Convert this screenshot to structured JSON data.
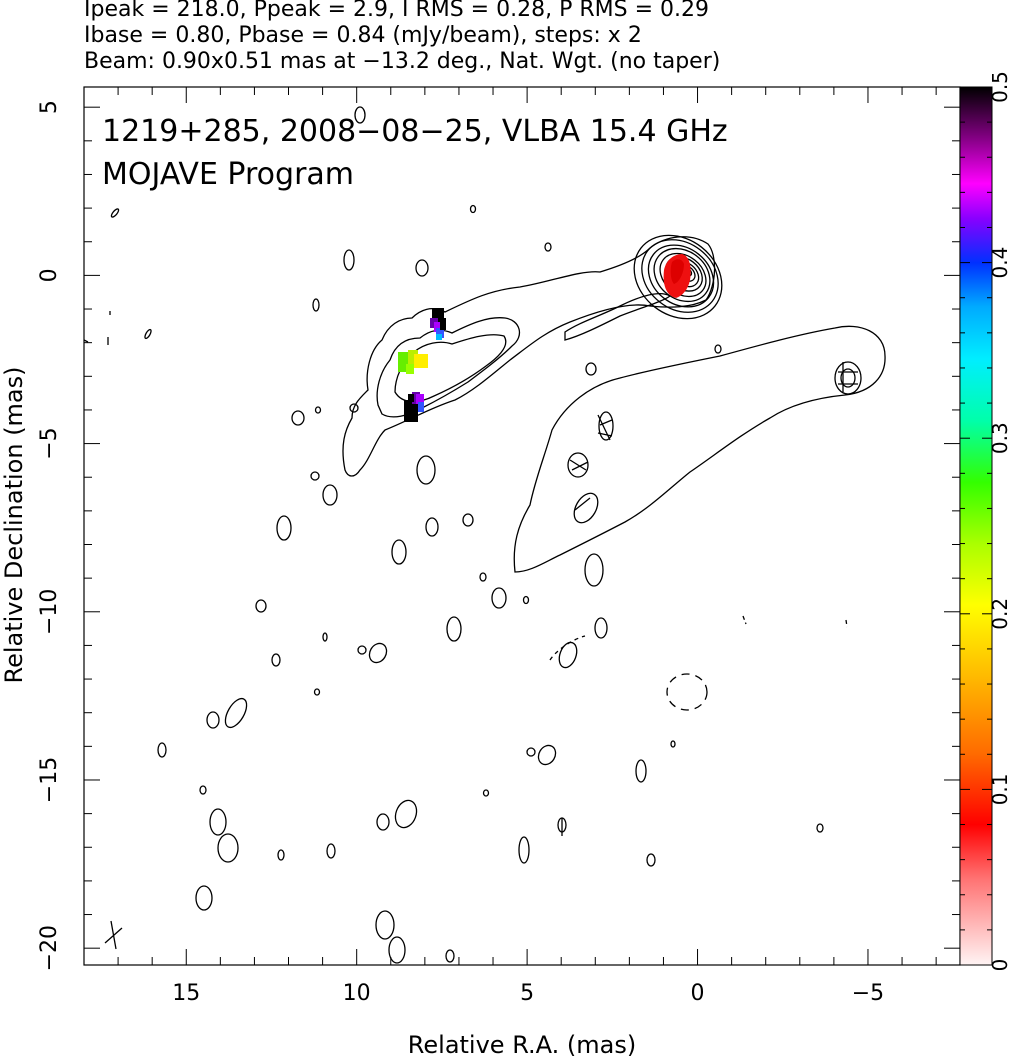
{
  "header": {
    "line1": "Ipeak = 218.0, Ppeak = 2.9, I RMS = 0.28, P RMS = 0.29",
    "line2": "Ibase = 0.80, Pbase = 0.84 (mJy/beam), steps: x 2",
    "line3": "Beam: 0.90x0.51 mas at −13.2 deg., Nat. Wgt. (no taper)"
  },
  "chart_data": {
    "type": "contour",
    "title_line1": "1219+285, 2008−08−25, VLBA 15.4 GHz",
    "title_line2": "MOJAVE Program",
    "xlabel": "Relative R.A. (mas)",
    "ylabel": "Relative Declination (mas)",
    "xlim": [
      18,
      -7.7
    ],
    "ylim": [
      -20.5,
      5.6
    ],
    "xticks": [
      15,
      10,
      5,
      0,
      -5
    ],
    "yticks": [
      5,
      0,
      -5,
      -10,
      -15,
      -20
    ],
    "xtick_labels": [
      "15",
      "10",
      "5",
      "0",
      "−5"
    ],
    "ytick_labels": [
      "5",
      "0",
      "−5",
      "−10",
      "−15",
      "−20"
    ],
    "colorbar": {
      "range": [
        0,
        0.5
      ],
      "ticks": [
        0,
        0.1,
        0.2,
        0.3,
        0.4,
        0.5
      ],
      "tick_labels": [
        "0",
        "0.1",
        "0.2",
        "0.3",
        "0.4",
        "0.5"
      ]
    },
    "core": {
      "x": 0,
      "y": 0
    },
    "jet_components": [
      {
        "x": 8.1,
        "y": -2.6,
        "fractional_polarization": 0.22
      },
      {
        "x": 7.5,
        "y": -1.4,
        "fractional_polarization": 0.45
      },
      {
        "x": 8.2,
        "y": -3.9,
        "fractional_polarization": 0.45
      },
      {
        "x": -4.8,
        "y": -3.1
      }
    ]
  }
}
